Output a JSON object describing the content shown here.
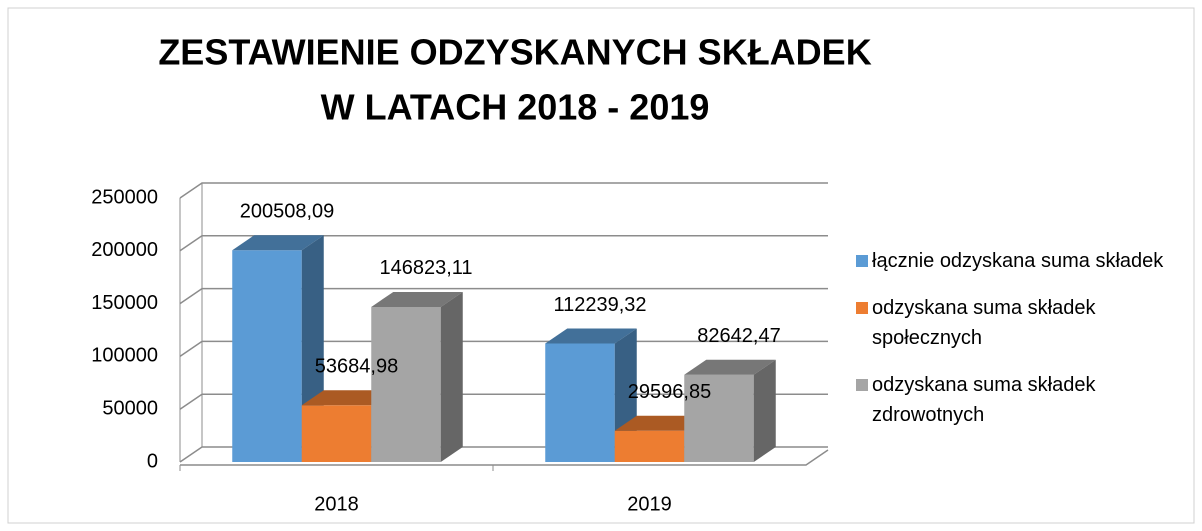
{
  "chart_data": {
    "type": "bar3d",
    "title": [
      "ZESTAWIENIE ODZYSKANYCH SKŁADEK",
      "W LATACH 2018 - 2019"
    ],
    "categories": [
      "2018",
      "2019"
    ],
    "series": [
      {
        "name": "łącznie odzyskana suma składek",
        "color": "#5b9bd5",
        "values": [
          200508.09,
          112239.32
        ],
        "value_labels": [
          "200508,09",
          "112239,32"
        ]
      },
      {
        "name": "odzyskana suma składek społecznych",
        "color": "#ed7d31",
        "values": [
          53684.98,
          29596.85
        ],
        "value_labels": [
          "53684,98",
          "29596,85"
        ]
      },
      {
        "name": "odzyskana suma składek zdrowotnych",
        "color": "#a5a5a5",
        "values": [
          146823.11,
          82642.47
        ],
        "value_labels": [
          "146823,11",
          "82642,47"
        ]
      }
    ],
    "ylim": [
      0,
      250000
    ],
    "yticks": [
      0,
      50000,
      100000,
      150000,
      200000,
      250000
    ],
    "grid": true,
    "legend": "right"
  }
}
